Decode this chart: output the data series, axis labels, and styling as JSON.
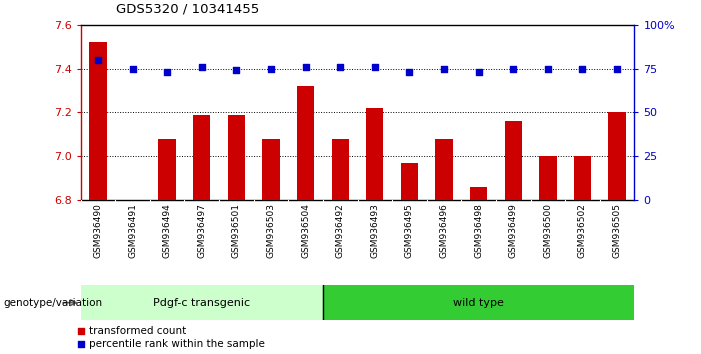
{
  "title": "GDS5320 / 10341455",
  "categories": [
    "GSM936490",
    "GSM936491",
    "GSM936494",
    "GSM936497",
    "GSM936501",
    "GSM936503",
    "GSM936504",
    "GSM936492",
    "GSM936493",
    "GSM936495",
    "GSM936496",
    "GSM936498",
    "GSM936499",
    "GSM936500",
    "GSM936502",
    "GSM936505"
  ],
  "bar_values": [
    7.52,
    6.8,
    7.08,
    7.19,
    7.19,
    7.08,
    7.32,
    7.08,
    7.22,
    6.97,
    7.08,
    6.86,
    7.16,
    7.0,
    7.0,
    7.2
  ],
  "dot_values_pct": [
    80,
    75,
    73,
    76,
    74,
    75,
    76,
    76,
    76,
    73,
    75,
    73,
    75,
    75,
    75,
    75
  ],
  "bar_color": "#cc0000",
  "dot_color": "#0000cc",
  "ylim_left": [
    6.8,
    7.6
  ],
  "ylim_right": [
    0,
    100
  ],
  "yticks_left": [
    6.8,
    7.0,
    7.2,
    7.4,
    7.6
  ],
  "yticks_right": [
    0,
    25,
    50,
    75,
    100
  ],
  "ytick_labels_right": [
    "0",
    "25",
    "50",
    "75",
    "100%"
  ],
  "group1_label": "Pdgf-c transgenic",
  "group2_label": "wild type",
  "group1_count": 7,
  "group2_count": 9,
  "genotype_label": "genotype/variation",
  "legend_bar": "transformed count",
  "legend_dot": "percentile rank within the sample",
  "background_color": "#ffffff",
  "bar_width": 0.5,
  "group1_bg": "#ccffcc",
  "group2_bg": "#33cc33",
  "xtick_bg": "#cccccc"
}
